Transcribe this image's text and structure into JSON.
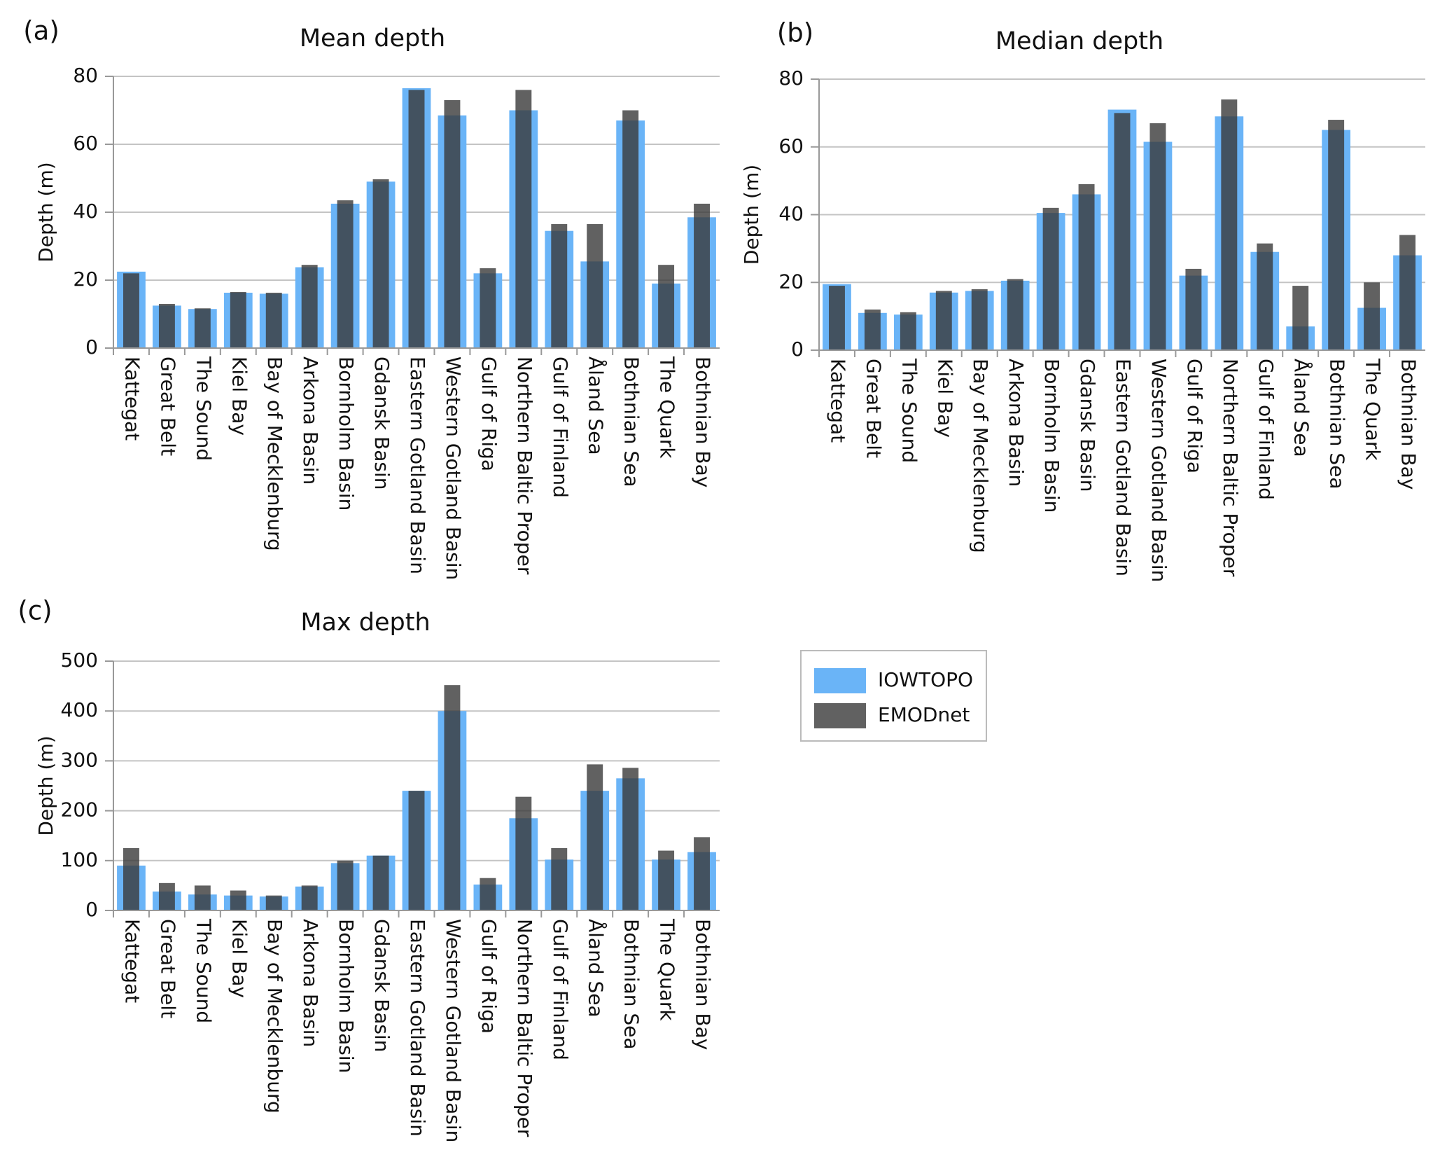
{
  "chart_data": [
    {
      "type": "bar",
      "panel_label": "(a)",
      "title": "Mean depth",
      "y_label": "Depth (m)",
      "categories": [
        "Kattegat",
        "Great Belt",
        "The Sound",
        "Kiel Bay",
        "Bay of Mecklenburg",
        "Arkona Basin",
        "Bornholm Basin",
        "Gdansk Basin",
        "Eastern Gotland Basin",
        "Western Gotland Basin",
        "Gulf of Riga",
        "Northern Baltic Proper",
        "Gulf of Finland",
        "Åland Sea",
        "Bothnian Sea",
        "The Quark",
        "Bothnian Bay"
      ],
      "series": [
        {
          "name": "IOWTOPO",
          "color": "#6ab4f7",
          "values": [
            22.5,
            12.5,
            11.5,
            16.3,
            16,
            23.8,
            42.5,
            49,
            76.5,
            68.5,
            22,
            70,
            34.5,
            25.5,
            67,
            19,
            38.5
          ]
        },
        {
          "name": "EMODnet",
          "color": "#3a3a3a",
          "values": [
            22,
            13,
            11.7,
            16.5,
            16.3,
            24.5,
            43.5,
            49.7,
            76,
            73,
            23.5,
            76,
            36.5,
            36.5,
            70,
            24.5,
            42.5
          ]
        }
      ],
      "ylim": [
        0,
        80
      ],
      "yticks": [
        0,
        20,
        40,
        60,
        80
      ],
      "grid": true
    },
    {
      "type": "bar",
      "panel_label": "(b)",
      "title": "Median depth",
      "y_label": "Depth (m)",
      "categories": [
        "Kattegat",
        "Great Belt",
        "The Sound",
        "Kiel Bay",
        "Bay of Mecklenburg",
        "Arkona Basin",
        "Bornholm Basin",
        "Gdansk Basin",
        "Eastern Gotland Basin",
        "Western Gotland Basin",
        "Gulf of Riga",
        "Northern Baltic Proper",
        "Gulf of Finland",
        "Åland Sea",
        "Bothnian Sea",
        "The Quark",
        "Bothnian Bay"
      ],
      "series": [
        {
          "name": "IOWTOPO",
          "color": "#6ab4f7",
          "values": [
            19.5,
            11,
            10.5,
            17,
            17.5,
            20.5,
            40.5,
            46,
            71,
            61.5,
            22,
            69,
            29,
            7,
            65,
            12.5,
            28
          ]
        },
        {
          "name": "EMODnet",
          "color": "#3a3a3a",
          "values": [
            19,
            12,
            11.2,
            17.5,
            18,
            21,
            42,
            49,
            70,
            67,
            24,
            74,
            31.5,
            19,
            68,
            20,
            34
          ]
        }
      ],
      "ylim": [
        0,
        80
      ],
      "yticks": [
        0,
        20,
        40,
        60,
        80
      ],
      "grid": true
    },
    {
      "type": "bar",
      "panel_label": "(c)",
      "title": "Max depth",
      "y_label": "Depth (m)",
      "categories": [
        "Kattegat",
        "Great Belt",
        "The Sound",
        "Kiel Bay",
        "Bay of Mecklenburg",
        "Arkona Basin",
        "Bornholm Basin",
        "Gdansk Basin",
        "Eastern Gotland Basin",
        "Western Gotland Basin",
        "Gulf of Riga",
        "Northern Baltic Proper",
        "Gulf of Finland",
        "Åland Sea",
        "Bothnian Sea",
        "The Quark",
        "Bothnian Bay"
      ],
      "series": [
        {
          "name": "IOWTOPO",
          "color": "#6ab4f7",
          "values": [
            90,
            38,
            32,
            30,
            28,
            48,
            95,
            110,
            240,
            400,
            52,
            185,
            102,
            240,
            265,
            102,
            117
          ]
        },
        {
          "name": "EMODnet",
          "color": "#3a3a3a",
          "values": [
            125,
            55,
            50,
            40,
            30,
            50,
            100,
            110,
            240,
            452,
            65,
            228,
            125,
            293,
            286,
            120,
            147
          ]
        }
      ],
      "ylim": [
        0,
        500
      ],
      "yticks": [
        0,
        100,
        200,
        300,
        400,
        500
      ],
      "grid": true
    }
  ]
}
